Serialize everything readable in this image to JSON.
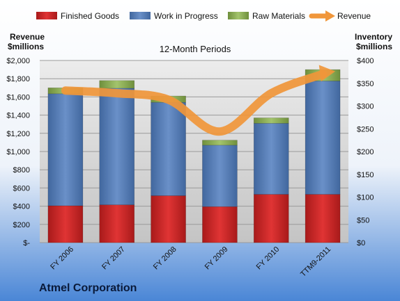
{
  "chart_data": {
    "type": "bar",
    "stacked": true,
    "title": "12-Month Periods",
    "company": "Atmel Corporation",
    "categories": [
      "FY 2006",
      "FY 2007",
      "FY 2008",
      "FY 2009",
      "FY 2010",
      "TTM9-2011"
    ],
    "legend": {
      "position": "top",
      "items": [
        {
          "label": "Finished Goods",
          "color": "#d42a2a",
          "kind": "bar"
        },
        {
          "label": "Work in Progress",
          "color": "#5a82bd",
          "kind": "bar"
        },
        {
          "label": "Raw Materials",
          "color": "#8fb05a",
          "kind": "bar"
        },
        {
          "label": "Revenue",
          "color": "#f0963a",
          "kind": "line"
        }
      ]
    },
    "left_axis": {
      "label_line1": "Revenue",
      "label_line2": "$millions",
      "range": [
        0,
        2000
      ],
      "ticks": [
        0,
        200,
        400,
        600,
        800,
        1000,
        1200,
        1400,
        1600,
        1800,
        2000
      ],
      "tick_labels": [
        "$-",
        "$200",
        "$400",
        "$600",
        "$800",
        "$1,000",
        "$1,200",
        "$1,400",
        "$1,600",
        "$1,800",
        "$2,000"
      ]
    },
    "right_axis": {
      "label_line1": "Inventory",
      "label_line2": "$millions",
      "range": [
        0,
        400
      ],
      "ticks": [
        0,
        50,
        100,
        150,
        200,
        250,
        300,
        350,
        400
      ],
      "tick_labels": [
        "$0",
        "$50",
        "$100",
        "$150",
        "$200",
        "$250",
        "$300",
        "$350",
        "$400"
      ]
    },
    "series": [
      {
        "name": "Finished Goods",
        "axis": "right",
        "color": "#d42a2a",
        "values": [
          81,
          83,
          103,
          79,
          106,
          106
        ]
      },
      {
        "name": "Work in Progress",
        "axis": "right",
        "color": "#5a82bd",
        "values": [
          246,
          256,
          205,
          135,
          156,
          249
        ]
      },
      {
        "name": "Raw Materials",
        "axis": "right",
        "color": "#8fb05a",
        "values": [
          13,
          17,
          14,
          11,
          12,
          25
        ]
      },
      {
        "name": "Revenue",
        "axis": "left",
        "color": "#f0963a",
        "type": "line",
        "values": [
          1670,
          1640,
          1570,
          1220,
          1640,
          1850
        ]
      }
    ],
    "grid": true
  }
}
